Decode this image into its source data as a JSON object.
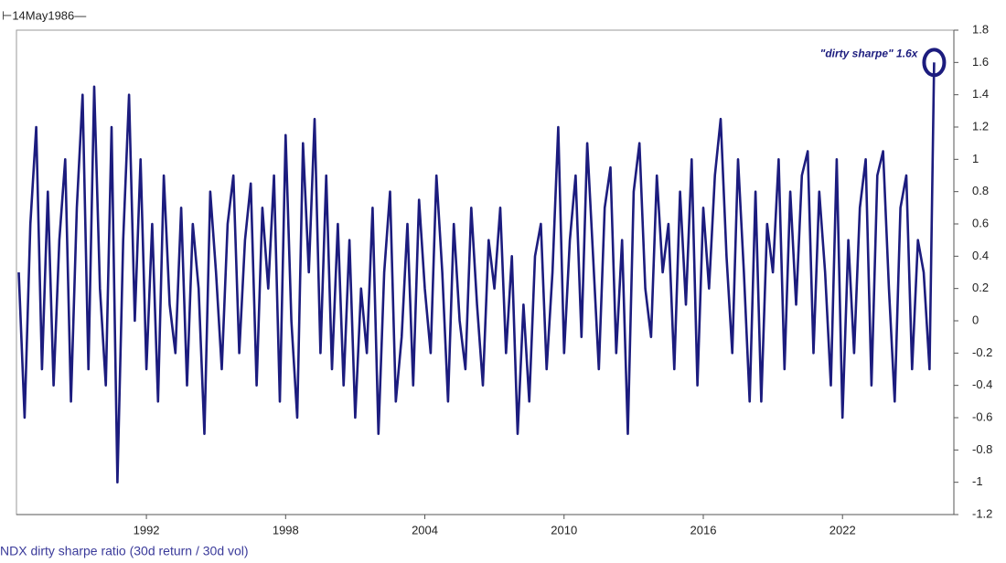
{
  "chart_data": {
    "type": "line",
    "start_label": "⊢14May1986—",
    "legend_label": "NDX dirty sharpe ratio (30d return / 30d vol)",
    "annotation": "\"dirty sharpe\" 1.6x",
    "color": "#1c1c7e",
    "xlim": [
      1986.4,
      2026.8
    ],
    "xticks": [
      1992,
      1998,
      2004,
      2010,
      2016,
      2022
    ],
    "ylim": [
      -1.2,
      1.8
    ],
    "yticks": [
      1.8,
      1.6,
      1.4,
      1.2,
      1,
      0.8,
      0.6,
      0.4,
      0.2,
      0,
      -0.2,
      -0.4,
      -0.6,
      -0.8,
      -1,
      -1.2
    ],
    "grid": false,
    "series": [
      {
        "name": "NDX dirty sharpe ratio (30d return / 30d vol)",
        "color": "#1c1c7e",
        "x": [
          1986.5,
          1986.75,
          1987,
          1987.25,
          1987.5,
          1987.75,
          1988,
          1988.25,
          1988.5,
          1988.75,
          1989,
          1989.25,
          1989.5,
          1989.75,
          1990,
          1990.25,
          1990.5,
          1990.75,
          1991,
          1991.25,
          1991.5,
          1991.75,
          1992,
          1992.25,
          1992.5,
          1992.75,
          1993,
          1993.25,
          1993.5,
          1993.75,
          1994,
          1994.25,
          1994.5,
          1994.75,
          1995,
          1995.25,
          1995.5,
          1995.75,
          1996,
          1996.25,
          1996.5,
          1996.75,
          1997,
          1997.25,
          1997.5,
          1997.75,
          1998,
          1998.25,
          1998.5,
          1998.75,
          1999,
          1999.25,
          1999.5,
          1999.75,
          2000,
          2000.25,
          2000.5,
          2000.75,
          2001,
          2001.25,
          2001.5,
          2001.75,
          2002,
          2002.25,
          2002.5,
          2002.75,
          2003,
          2003.25,
          2003.5,
          2003.75,
          2004,
          2004.25,
          2004.5,
          2004.75,
          2005,
          2005.25,
          2005.5,
          2005.75,
          2006,
          2006.25,
          2006.5,
          2006.75,
          2007,
          2007.25,
          2007.5,
          2007.75,
          2008,
          2008.25,
          2008.5,
          2008.75,
          2009,
          2009.25,
          2009.5,
          2009.75,
          2010,
          2010.25,
          2010.5,
          2010.75,
          2011,
          2011.25,
          2011.5,
          2011.75,
          2012,
          2012.25,
          2012.5,
          2012.75,
          2013,
          2013.25,
          2013.5,
          2013.75,
          2014,
          2014.25,
          2014.5,
          2014.75,
          2015,
          2015.25,
          2015.5,
          2015.75,
          2016,
          2016.25,
          2016.5,
          2016.75,
          2017,
          2017.25,
          2017.5,
          2017.75,
          2018,
          2018.25,
          2018.5,
          2018.75,
          2019,
          2019.25,
          2019.5,
          2019.75,
          2020,
          2020.25,
          2020.5,
          2020.75,
          2021,
          2021.25,
          2021.5,
          2021.75,
          2022,
          2022.25,
          2022.5,
          2022.75,
          2023,
          2023.25,
          2023.5,
          2023.75,
          2024,
          2024.25,
          2024.5,
          2024.75,
          2025,
          2025.25,
          2025.5,
          2025.75,
          2025.95
        ],
        "values": [
          0.3,
          -0.6,
          0.6,
          1.2,
          -0.3,
          0.8,
          -0.4,
          0.5,
          1.0,
          -0.5,
          0.7,
          1.4,
          -0.3,
          1.45,
          0.2,
          -0.4,
          1.2,
          -1.0,
          0.5,
          1.4,
          0.0,
          1.0,
          -0.3,
          0.6,
          -0.5,
          0.9,
          0.1,
          -0.2,
          0.7,
          -0.4,
          0.6,
          0.2,
          -0.7,
          0.8,
          0.3,
          -0.3,
          0.6,
          0.9,
          -0.2,
          0.5,
          0.85,
          -0.4,
          0.7,
          0.2,
          0.9,
          -0.5,
          1.15,
          0.0,
          -0.6,
          1.1,
          0.3,
          1.25,
          -0.2,
          0.9,
          -0.3,
          0.6,
          -0.4,
          0.5,
          -0.6,
          0.2,
          -0.2,
          0.7,
          -0.7,
          0.3,
          0.8,
          -0.5,
          -0.1,
          0.6,
          -0.4,
          0.75,
          0.2,
          -0.2,
          0.9,
          0.3,
          -0.5,
          0.6,
          0.0,
          -0.3,
          0.7,
          0.1,
          -0.4,
          0.5,
          0.2,
          0.7,
          -0.2,
          0.4,
          -0.7,
          0.1,
          -0.5,
          0.4,
          0.6,
          -0.3,
          0.3,
          1.2,
          -0.2,
          0.5,
          0.9,
          -0.1,
          1.1,
          0.4,
          -0.3,
          0.7,
          0.95,
          -0.2,
          0.5,
          -0.7,
          0.8,
          1.1,
          0.2,
          -0.1,
          0.9,
          0.3,
          0.6,
          -0.3,
          0.8,
          0.1,
          1.0,
          -0.4,
          0.7,
          0.2,
          0.9,
          1.25,
          0.4,
          -0.2,
          1.0,
          0.3,
          -0.5,
          0.8,
          -0.5,
          0.6,
          0.3,
          1.0,
          -0.3,
          0.8,
          0.1,
          0.9,
          1.05,
          -0.2,
          0.8,
          0.3,
          -0.4,
          1.0,
          -0.6,
          0.5,
          -0.2,
          0.7,
          1.0,
          -0.4,
          0.9,
          1.05,
          0.2,
          -0.5,
          0.7,
          0.9,
          -0.3,
          0.5,
          0.3,
          -0.3,
          1.6
        ]
      }
    ]
  }
}
